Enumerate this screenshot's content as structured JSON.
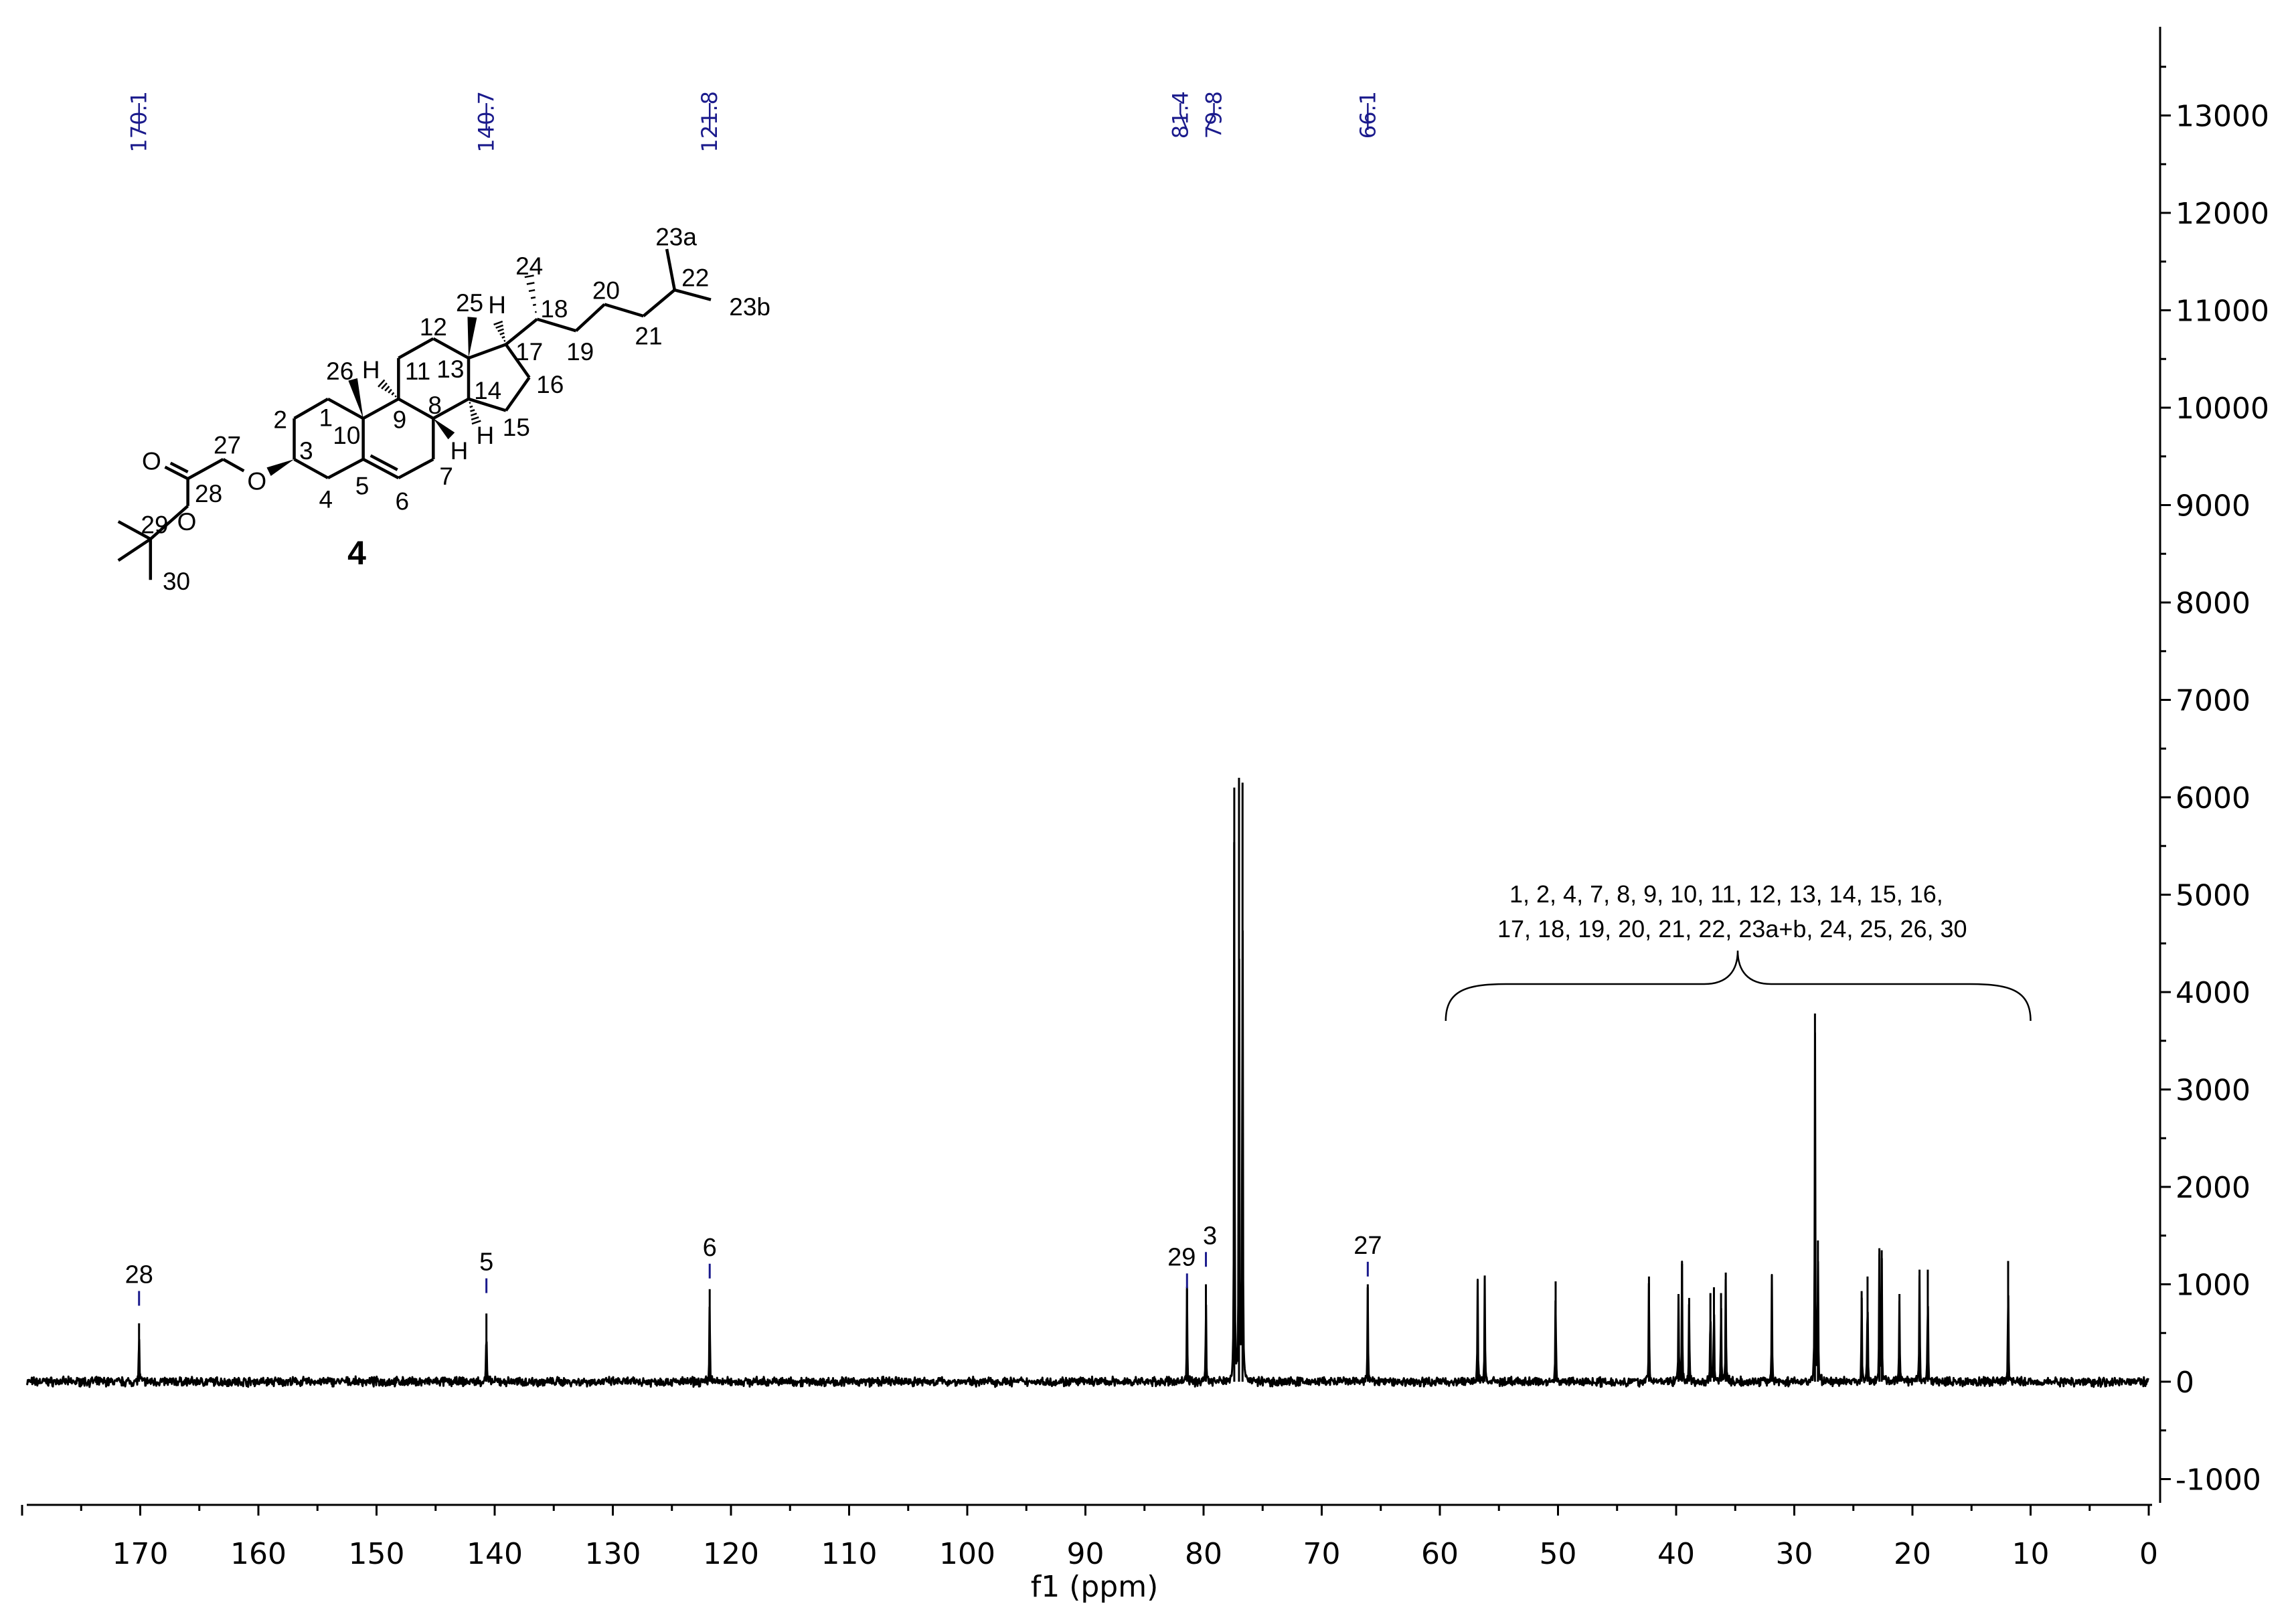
{
  "chart_data": {
    "type": "line",
    "title": "",
    "xlabel": "f1 (ppm)",
    "ylabel": "",
    "xlim": [
      180,
      0
    ],
    "ylim": [
      -1400,
      13800
    ],
    "x_reversed": true,
    "grid": false,
    "x_ticks": [
      "170",
      "160",
      "150",
      "140",
      "130",
      "120",
      "110",
      "100",
      "90",
      "80",
      "70",
      "60",
      "50",
      "40",
      "30",
      "20",
      "10",
      "0"
    ],
    "y_ticks": [
      "13000",
      "12000",
      "11000",
      "10000",
      "9000",
      "8000",
      "7000",
      "6000",
      "5000",
      "4000",
      "3000",
      "2000",
      "1000",
      "0",
      "-1000"
    ],
    "y_axis_side": "right",
    "line_color": "#000000",
    "annotation_color": "#1a1a8c",
    "peaks": [
      {
        "ppm": 170.1,
        "intensity": 600
      },
      {
        "ppm": 140.7,
        "intensity": 700
      },
      {
        "ppm": 121.8,
        "intensity": 950
      },
      {
        "ppm": 81.4,
        "intensity": 950
      },
      {
        "ppm": 79.8,
        "intensity": 1000
      },
      {
        "ppm": 77.4,
        "intensity": 6100
      },
      {
        "ppm": 77.0,
        "intensity": 6200
      },
      {
        "ppm": 76.7,
        "intensity": 6150
      },
      {
        "ppm": 66.1,
        "intensity": 1000
      },
      {
        "ppm": 56.8,
        "intensity": 1010
      },
      {
        "ppm": 56.2,
        "intensity": 1090
      },
      {
        "ppm": 50.2,
        "intensity": 1030
      },
      {
        "ppm": 42.3,
        "intensity": 1080
      },
      {
        "ppm": 39.8,
        "intensity": 900
      },
      {
        "ppm": 39.5,
        "intensity": 1210
      },
      {
        "ppm": 38.9,
        "intensity": 860
      },
      {
        "ppm": 37.1,
        "intensity": 910
      },
      {
        "ppm": 36.8,
        "intensity": 970
      },
      {
        "ppm": 36.2,
        "intensity": 910
      },
      {
        "ppm": 35.8,
        "intensity": 1120
      },
      {
        "ppm": 31.9,
        "intensity": 1090
      },
      {
        "ppm": 28.25,
        "intensity": 3780
      },
      {
        "ppm": 28.0,
        "intensity": 1450
      },
      {
        "ppm": 24.3,
        "intensity": 930
      },
      {
        "ppm": 23.8,
        "intensity": 1080
      },
      {
        "ppm": 22.8,
        "intensity": 1370
      },
      {
        "ppm": 22.6,
        "intensity": 1350
      },
      {
        "ppm": 21.1,
        "intensity": 900
      },
      {
        "ppm": 19.4,
        "intensity": 1150
      },
      {
        "ppm": 18.7,
        "intensity": 1150
      },
      {
        "ppm": 11.9,
        "intensity": 1240
      }
    ],
    "top_peak_labels": [
      {
        "ppm": 170.1,
        "text": "170.1"
      },
      {
        "ppm": 140.7,
        "text": "140.7"
      },
      {
        "ppm": 121.8,
        "text": "121.8"
      },
      {
        "ppm": 81.4,
        "text": "81.4"
      },
      {
        "ppm": 79.8,
        "text": "79.8"
      },
      {
        "ppm": 66.1,
        "text": "66.1"
      }
    ],
    "assignment_labels": [
      {
        "ppm": 170.1,
        "text": "28",
        "intensity": 1000
      },
      {
        "ppm": 140.7,
        "text": "5",
        "intensity": 1130
      },
      {
        "ppm": 121.8,
        "text": "6",
        "intensity": 1280
      },
      {
        "ppm": 81.4,
        "text": "29",
        "intensity": 1180
      },
      {
        "ppm": 79.8,
        "text": "3",
        "intensity": 1400
      },
      {
        "ppm": 66.1,
        "text": "27",
        "intensity": 1300
      }
    ],
    "brace_annotation": {
      "from_ppm": 59.5,
      "to_ppm": 10,
      "lines": [
        "1, 2, 4, 7, 8, 9, 10, 11, 12, 13, 14, 15, 16,",
        "17, 18, 19, 20, 21, 22, 23a+b, 24, 25, 26, 30"
      ]
    }
  },
  "structure": {
    "compound_number": "4",
    "labels": [
      "1",
      "2",
      "3",
      "4",
      "5",
      "6",
      "7",
      "8",
      "9",
      "10",
      "11",
      "13",
      "12",
      "14",
      "15",
      "16",
      "17",
      "18",
      "19",
      "20",
      "21",
      "22",
      "23a",
      "23b",
      "24",
      "25",
      "H",
      "26",
      "H",
      "H",
      "H",
      "27",
      "28",
      "29",
      "30",
      "O",
      "O",
      "O"
    ]
  }
}
